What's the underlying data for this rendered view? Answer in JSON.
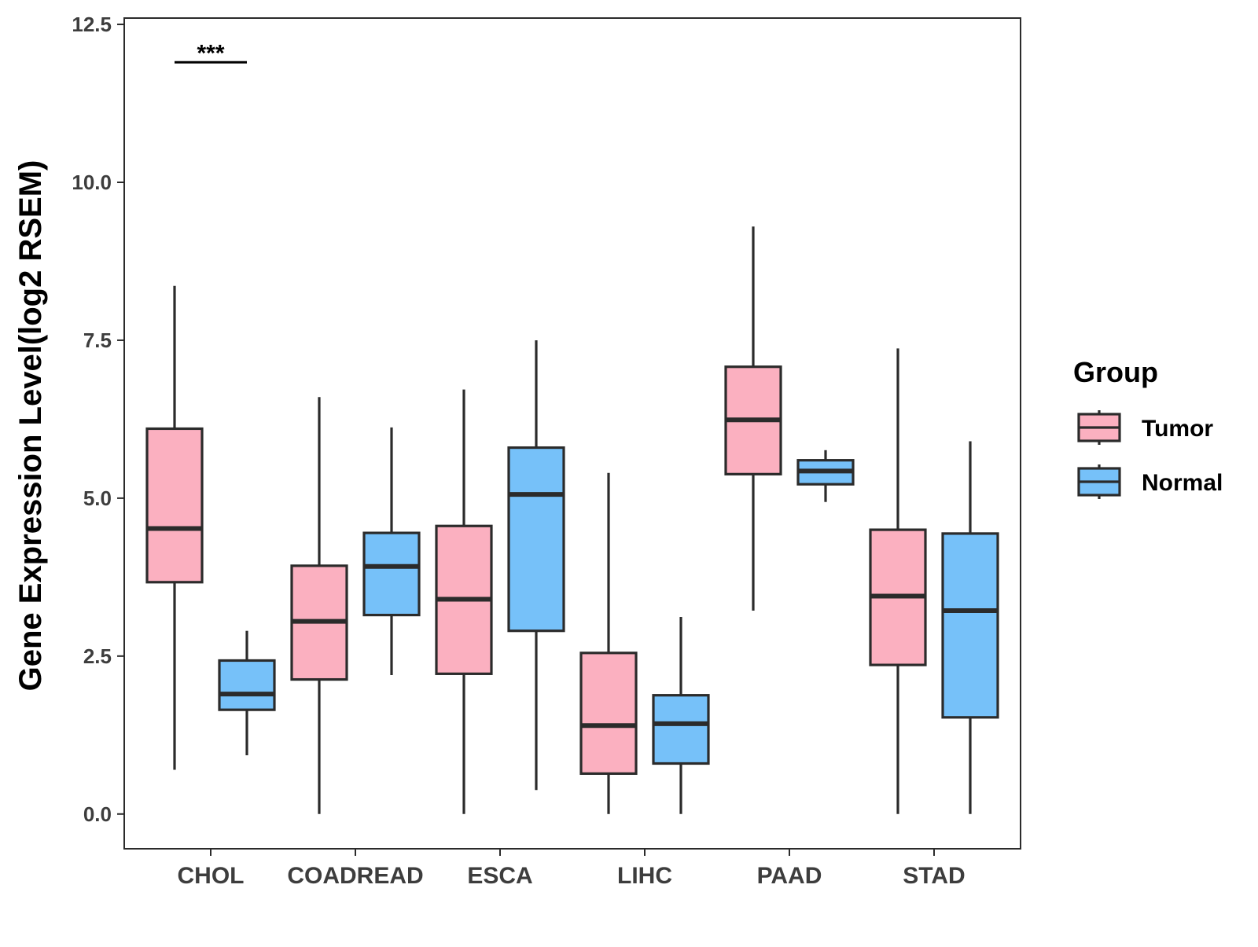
{
  "chart_data": {
    "type": "boxplot",
    "title": "",
    "xlabel": "",
    "ylabel": "Gene Expression Level(log2 RSEM)",
    "ylim": [
      -0.55,
      12.6
    ],
    "yticks": [
      0.0,
      2.5,
      5.0,
      7.5,
      10.0,
      12.5
    ],
    "ytick_labels": [
      "0.0",
      "2.5",
      "5.0",
      "7.5",
      "10.0",
      "12.5"
    ],
    "categories": [
      "CHOL",
      "COADREAD",
      "ESCA",
      "LIHC",
      "PAAD",
      "STAD"
    ],
    "legend": {
      "title": "Group",
      "position": "right",
      "entries": [
        "Tumor",
        "Normal"
      ]
    },
    "colors": {
      "Tumor": "#fbb0c0",
      "Normal": "#76c1f9",
      "stroke": "#2b2b2b"
    },
    "series": [
      {
        "name": "Tumor",
        "boxes": [
          {
            "category": "CHOL",
            "whisker_low": 0.7,
            "q1": 3.67,
            "median": 4.52,
            "q3": 6.1,
            "whisker_high": 8.36
          },
          {
            "category": "COADREAD",
            "whisker_low": 0.0,
            "q1": 2.13,
            "median": 3.05,
            "q3": 3.93,
            "whisker_high": 6.6
          },
          {
            "category": "ESCA",
            "whisker_low": 0.0,
            "q1": 2.22,
            "median": 3.4,
            "q3": 4.56,
            "whisker_high": 6.72
          },
          {
            "category": "LIHC",
            "whisker_low": 0.0,
            "q1": 0.64,
            "median": 1.4,
            "q3": 2.55,
            "whisker_high": 5.4
          },
          {
            "category": "PAAD",
            "whisker_low": 3.22,
            "q1": 5.38,
            "median": 6.24,
            "q3": 7.08,
            "whisker_high": 9.3
          },
          {
            "category": "STAD",
            "whisker_low": 0.0,
            "q1": 2.36,
            "median": 3.45,
            "q3": 4.5,
            "whisker_high": 7.37
          }
        ]
      },
      {
        "name": "Normal",
        "boxes": [
          {
            "category": "CHOL",
            "whisker_low": 0.93,
            "q1": 1.65,
            "median": 1.9,
            "q3": 2.43,
            "whisker_high": 2.9
          },
          {
            "category": "COADREAD",
            "whisker_low": 2.2,
            "q1": 3.15,
            "median": 3.92,
            "q3": 4.45,
            "whisker_high": 6.12
          },
          {
            "category": "ESCA",
            "whisker_low": 0.38,
            "q1": 2.9,
            "median": 5.06,
            "q3": 5.8,
            "whisker_high": 7.5
          },
          {
            "category": "LIHC",
            "whisker_low": 0.0,
            "q1": 0.8,
            "median": 1.43,
            "q3": 1.88,
            "whisker_high": 3.12
          },
          {
            "category": "PAAD",
            "whisker_low": 4.94,
            "q1": 5.22,
            "median": 5.43,
            "q3": 5.6,
            "whisker_high": 5.76
          },
          {
            "category": "STAD",
            "whisker_low": 0.0,
            "q1": 1.53,
            "median": 3.22,
            "q3": 4.44,
            "whisker_high": 5.9
          }
        ]
      }
    ],
    "annotations": [
      {
        "category": "CHOL",
        "text": "***",
        "y": 11.9
      }
    ]
  }
}
